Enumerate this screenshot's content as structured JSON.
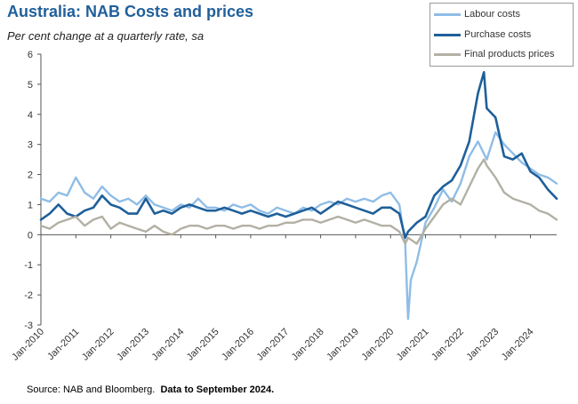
{
  "title": "Australia: NAB Costs and prices",
  "subtitle": "Per cent change at a quarterly rate, sa",
  "source": "Source: NAB and Bloomberg.",
  "source_note": "Data to September 2024.",
  "colors": {
    "labour": "#8fbde6",
    "purchase": "#1f5f9a",
    "final": "#b3b0a4",
    "title": "#1f5f9a"
  },
  "chart_data": {
    "type": "line",
    "title": "Australia: NAB Costs and prices",
    "ylabel": "Per cent change at a quarterly rate, sa",
    "ylim": [
      -3,
      6
    ],
    "yticks": [
      6,
      5,
      4,
      3,
      2,
      1,
      0,
      -1,
      -2,
      -3
    ],
    "xticks": [
      "Jan-2010",
      "Jan-2011",
      "Jan-2012",
      "Jan-2013",
      "Jan-2014",
      "Jan-2015",
      "Jan-2016",
      "Jan-2017",
      "Jan-2018",
      "Jan-2019",
      "Jan-2020",
      "Jan-2021",
      "Jan-2022",
      "Jan-2023",
      "Jan-2024"
    ],
    "x_start": "Jan-2010",
    "x_end": "Sep-2024",
    "legend_position": "top-right",
    "series": [
      {
        "name": "Labour costs",
        "color": "#8fbde6",
        "points": [
          [
            0,
            1.2
          ],
          [
            0.25,
            1.1
          ],
          [
            0.5,
            1.4
          ],
          [
            0.75,
            1.3
          ],
          [
            1.0,
            1.9
          ],
          [
            1.25,
            1.4
          ],
          [
            1.5,
            1.2
          ],
          [
            1.75,
            1.6
          ],
          [
            2.0,
            1.3
          ],
          [
            2.25,
            1.1
          ],
          [
            2.5,
            1.2
          ],
          [
            2.75,
            1.0
          ],
          [
            3.0,
            1.3
          ],
          [
            3.25,
            1.0
          ],
          [
            3.5,
            0.9
          ],
          [
            3.75,
            0.8
          ],
          [
            4.0,
            1.0
          ],
          [
            4.25,
            0.9
          ],
          [
            4.5,
            1.2
          ],
          [
            4.75,
            0.9
          ],
          [
            5.0,
            0.9
          ],
          [
            5.25,
            0.8
          ],
          [
            5.5,
            1.0
          ],
          [
            5.75,
            0.9
          ],
          [
            6.0,
            1.0
          ],
          [
            6.25,
            0.8
          ],
          [
            6.5,
            0.7
          ],
          [
            6.75,
            0.9
          ],
          [
            7.0,
            0.8
          ],
          [
            7.25,
            0.7
          ],
          [
            7.5,
            0.9
          ],
          [
            7.75,
            0.8
          ],
          [
            8.0,
            1.0
          ],
          [
            8.25,
            1.1
          ],
          [
            8.5,
            1.0
          ],
          [
            8.75,
            1.2
          ],
          [
            9.0,
            1.1
          ],
          [
            9.25,
            1.2
          ],
          [
            9.5,
            1.1
          ],
          [
            9.75,
            1.3
          ],
          [
            10.0,
            1.4
          ],
          [
            10.25,
            1.0
          ],
          [
            10.42,
            -0.3
          ],
          [
            10.5,
            -2.8
          ],
          [
            10.58,
            -1.5
          ],
          [
            10.75,
            -0.9
          ],
          [
            11.0,
            0.4
          ],
          [
            11.25,
            0.9
          ],
          [
            11.5,
            1.5
          ],
          [
            11.75,
            1.1
          ],
          [
            12.0,
            1.7
          ],
          [
            12.25,
            2.6
          ],
          [
            12.5,
            3.1
          ],
          [
            12.75,
            2.5
          ],
          [
            13.0,
            3.4
          ],
          [
            13.25,
            3.0
          ],
          [
            13.5,
            2.7
          ],
          [
            13.75,
            2.4
          ],
          [
            14.0,
            2.2
          ],
          [
            14.25,
            2.0
          ],
          [
            14.5,
            1.9
          ],
          [
            14.75,
            1.7
          ]
        ]
      },
      {
        "name": "Purchase costs",
        "color": "#1f5f9a",
        "points": [
          [
            0,
            0.5
          ],
          [
            0.25,
            0.7
          ],
          [
            0.5,
            1.0
          ],
          [
            0.75,
            0.7
          ],
          [
            1.0,
            0.6
          ],
          [
            1.25,
            0.8
          ],
          [
            1.5,
            0.9
          ],
          [
            1.75,
            1.3
          ],
          [
            2.0,
            1.0
          ],
          [
            2.25,
            0.9
          ],
          [
            2.5,
            0.7
          ],
          [
            2.75,
            0.7
          ],
          [
            3.0,
            1.2
          ],
          [
            3.25,
            0.7
          ],
          [
            3.5,
            0.8
          ],
          [
            3.75,
            0.7
          ],
          [
            4.0,
            0.9
          ],
          [
            4.25,
            1.0
          ],
          [
            4.5,
            0.9
          ],
          [
            4.75,
            0.8
          ],
          [
            5.0,
            0.8
          ],
          [
            5.25,
            0.9
          ],
          [
            5.5,
            0.8
          ],
          [
            5.75,
            0.7
          ],
          [
            6.0,
            0.8
          ],
          [
            6.25,
            0.7
          ],
          [
            6.5,
            0.6
          ],
          [
            6.75,
            0.7
          ],
          [
            7.0,
            0.6
          ],
          [
            7.25,
            0.7
          ],
          [
            7.5,
            0.8
          ],
          [
            7.75,
            0.9
          ],
          [
            8.0,
            0.7
          ],
          [
            8.25,
            0.9
          ],
          [
            8.5,
            1.1
          ],
          [
            8.75,
            1.0
          ],
          [
            9.0,
            0.9
          ],
          [
            9.25,
            0.8
          ],
          [
            9.5,
            0.7
          ],
          [
            9.75,
            0.9
          ],
          [
            10.0,
            0.9
          ],
          [
            10.25,
            0.7
          ],
          [
            10.42,
            -0.1
          ],
          [
            10.5,
            0.1
          ],
          [
            10.75,
            0.4
          ],
          [
            11.0,
            0.6
          ],
          [
            11.25,
            1.3
          ],
          [
            11.5,
            1.6
          ],
          [
            11.75,
            1.8
          ],
          [
            12.0,
            2.3
          ],
          [
            12.25,
            3.1
          ],
          [
            12.5,
            4.7
          ],
          [
            12.67,
            5.4
          ],
          [
            12.75,
            4.2
          ],
          [
            13.0,
            3.9
          ],
          [
            13.25,
            2.6
          ],
          [
            13.5,
            2.5
          ],
          [
            13.75,
            2.7
          ],
          [
            14.0,
            2.1
          ],
          [
            14.25,
            1.9
          ],
          [
            14.5,
            1.5
          ],
          [
            14.75,
            1.2
          ]
        ]
      },
      {
        "name": "Final products prices",
        "color": "#b3b0a4",
        "points": [
          [
            0,
            0.3
          ],
          [
            0.25,
            0.2
          ],
          [
            0.5,
            0.4
          ],
          [
            0.75,
            0.5
          ],
          [
            1.0,
            0.6
          ],
          [
            1.25,
            0.3
          ],
          [
            1.5,
            0.5
          ],
          [
            1.75,
            0.6
          ],
          [
            2.0,
            0.2
          ],
          [
            2.25,
            0.4
          ],
          [
            2.5,
            0.3
          ],
          [
            2.75,
            0.2
          ],
          [
            3.0,
            0.1
          ],
          [
            3.25,
            0.3
          ],
          [
            3.5,
            0.1
          ],
          [
            3.75,
            0.0
          ],
          [
            4.0,
            0.2
          ],
          [
            4.25,
            0.3
          ],
          [
            4.5,
            0.3
          ],
          [
            4.75,
            0.2
          ],
          [
            5.0,
            0.3
          ],
          [
            5.25,
            0.3
          ],
          [
            5.5,
            0.2
          ],
          [
            5.75,
            0.3
          ],
          [
            6.0,
            0.3
          ],
          [
            6.25,
            0.2
          ],
          [
            6.5,
            0.3
          ],
          [
            6.75,
            0.3
          ],
          [
            7.0,
            0.4
          ],
          [
            7.25,
            0.4
          ],
          [
            7.5,
            0.5
          ],
          [
            7.75,
            0.5
          ],
          [
            8.0,
            0.4
          ],
          [
            8.25,
            0.5
          ],
          [
            8.5,
            0.6
          ],
          [
            8.75,
            0.5
          ],
          [
            9.0,
            0.4
          ],
          [
            9.25,
            0.5
          ],
          [
            9.5,
            0.4
          ],
          [
            9.75,
            0.3
          ],
          [
            10.0,
            0.3
          ],
          [
            10.25,
            0.1
          ],
          [
            10.42,
            -0.3
          ],
          [
            10.5,
            -0.1
          ],
          [
            10.75,
            -0.3
          ],
          [
            11.0,
            0.2
          ],
          [
            11.25,
            0.6
          ],
          [
            11.5,
            1.0
          ],
          [
            11.75,
            1.2
          ],
          [
            12.0,
            1.0
          ],
          [
            12.25,
            1.6
          ],
          [
            12.5,
            2.2
          ],
          [
            12.67,
            2.5
          ],
          [
            12.75,
            2.3
          ],
          [
            13.0,
            1.9
          ],
          [
            13.25,
            1.4
          ],
          [
            13.5,
            1.2
          ],
          [
            13.75,
            1.1
          ],
          [
            14.0,
            1.0
          ],
          [
            14.25,
            0.8
          ],
          [
            14.5,
            0.7
          ],
          [
            14.75,
            0.5
          ]
        ]
      }
    ]
  }
}
